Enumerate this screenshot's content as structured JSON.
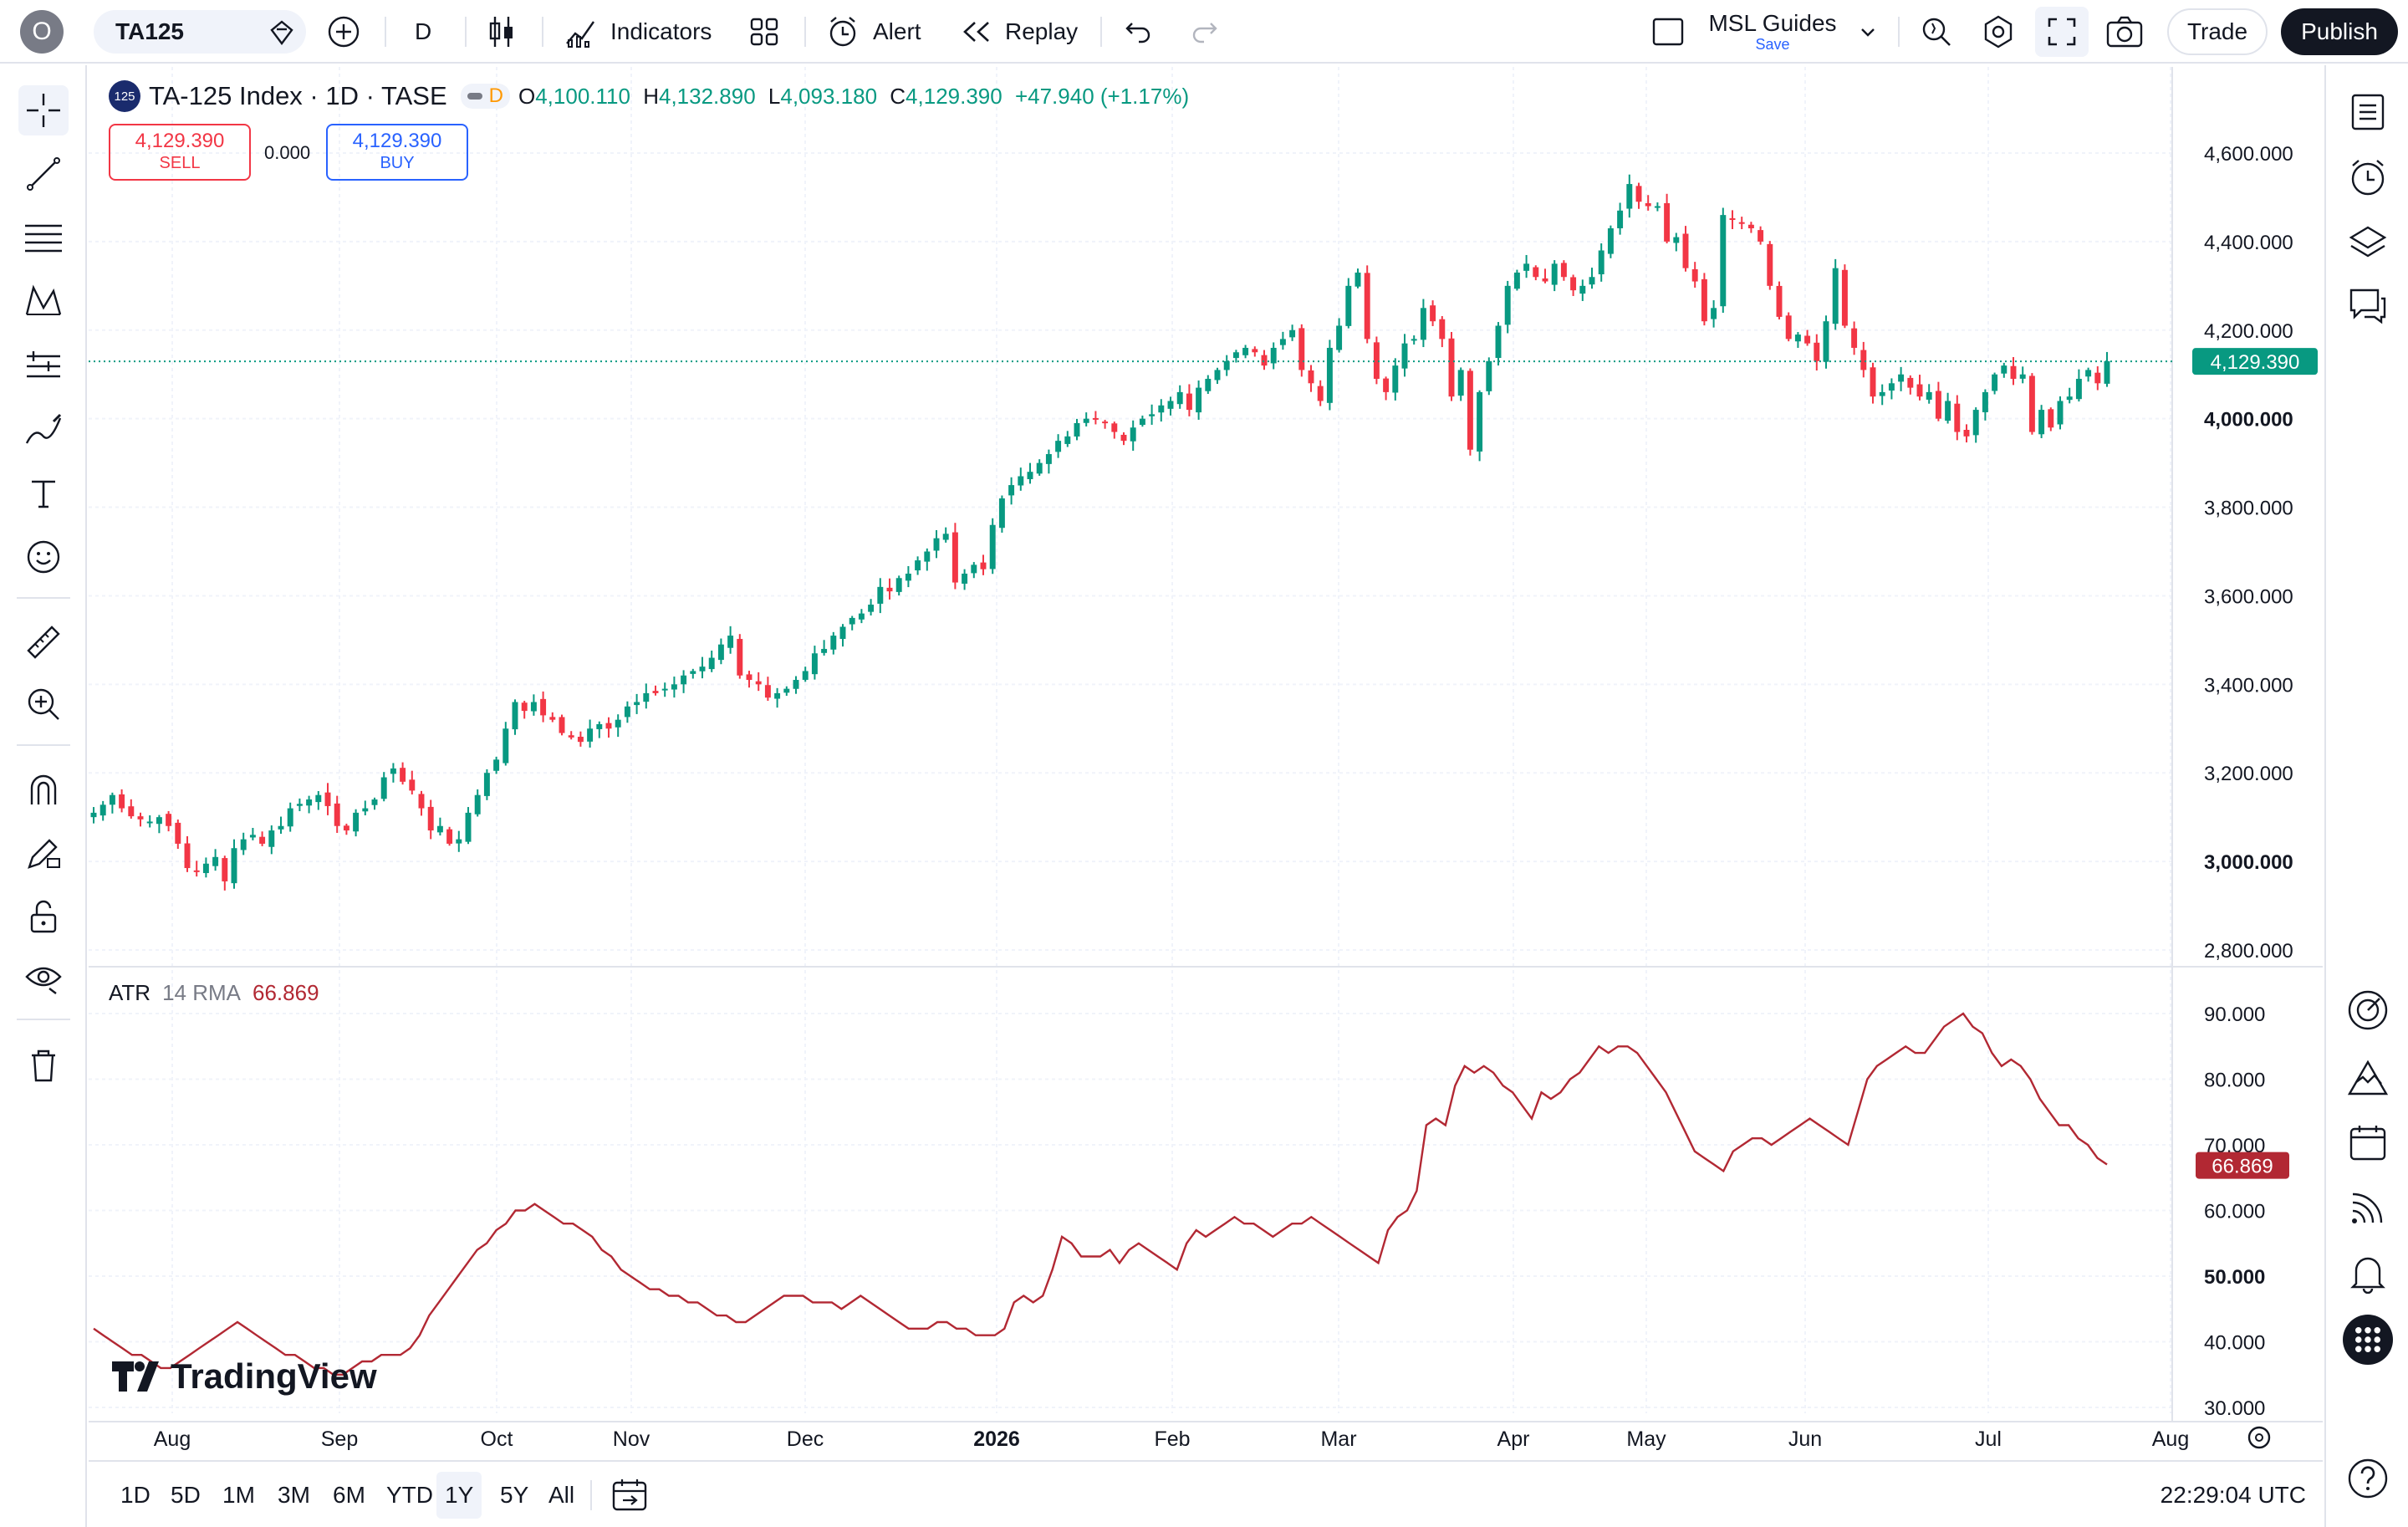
{
  "topbar": {
    "avatar_letter": "O",
    "symbol": "TA125",
    "interval": "D",
    "indicators_label": "Indicators",
    "alert_label": "Alert",
    "replay_label": "Replay",
    "layout_name": "MSL Guides",
    "layout_save": "Save",
    "trade_label": "Trade",
    "publish_label": "Publish"
  },
  "legend": {
    "badge": "125",
    "title": "TA-125 Index · 1D · TASE",
    "d_badge": "D",
    "o_key": "O",
    "o_val": "4,100.110",
    "h_key": "H",
    "h_val": "4,132.890",
    "l_key": "L",
    "l_val": "4,093.180",
    "c_key": "C",
    "c_val": "4,129.390",
    "change": "+47.940 (+1.17%)",
    "sell_price": "4,129.390",
    "sell_label": "SELL",
    "spread": "0.000",
    "buy_price": "4,129.390",
    "buy_label": "BUY"
  },
  "atr": {
    "name": "ATR",
    "params": "14 RMA",
    "value": "66.869"
  },
  "bottombar": {
    "ranges": [
      "1D",
      "5D",
      "1M",
      "3M",
      "6M",
      "YTD",
      "1Y",
      "5Y",
      "All"
    ],
    "selected": "1Y",
    "clock": "22:29:04 UTC"
  },
  "branding": {
    "logo_text": "TradingView"
  },
  "colors": {
    "up": "#089981",
    "down": "#f23645",
    "atr": "#b22833",
    "accent": "#2962ff"
  },
  "chart_data": [
    {
      "type": "candlestick",
      "title": "TA-125 Index · 1D · TASE",
      "x_tick_labels": [
        "Aug",
        "Sep",
        "Oct",
        "Nov",
        "Dec",
        "2026",
        "Feb",
        "Mar",
        "Apr",
        "May",
        "Jun",
        "Jul",
        "Aug"
      ],
      "y_tick_labels": [
        "4,600.000",
        "4,400.000",
        "4,200.000",
        "4,000.000",
        "3,800.000",
        "3,600.000",
        "3,400.000",
        "3,200.000",
        "3,000.000",
        "2,800.000"
      ],
      "y_ticks": [
        4600,
        4400,
        4200,
        4000,
        3800,
        3600,
        3400,
        3200,
        3000,
        2800
      ],
      "ylim": [
        2780,
        4680
      ],
      "last_price": 4129.39,
      "last_price_label": "4,129.390",
      "grid": true,
      "closes": [
        3110,
        3128,
        3150,
        3120,
        3102,
        3095,
        3090,
        3100,
        3080,
        3040,
        2985,
        2978,
        2995,
        3010,
        2955,
        3030,
        3050,
        3060,
        3040,
        3070,
        3080,
        3120,
        3130,
        3140,
        3150,
        3125,
        3080,
        3070,
        3110,
        3120,
        3140,
        3190,
        3210,
        3180,
        3160,
        3120,
        3070,
        3080,
        3040,
        3050,
        3110,
        3150,
        3200,
        3230,
        3300,
        3360,
        3340,
        3360,
        3330,
        3320,
        3290,
        3280,
        3270,
        3300,
        3310,
        3300,
        3320,
        3350,
        3360,
        3380,
        3380,
        3390,
        3400,
        3420,
        3430,
        3440,
        3460,
        3490,
        3510,
        3420,
        3410,
        3400,
        3370,
        3380,
        3390,
        3410,
        3430,
        3470,
        3480,
        3510,
        3530,
        3550,
        3560,
        3580,
        3620,
        3610,
        3640,
        3650,
        3680,
        3700,
        3730,
        3740,
        3630,
        3650,
        3670,
        3660,
        3760,
        3820,
        3850,
        3870,
        3880,
        3900,
        3920,
        3950,
        3960,
        3990,
        4000,
        4000,
        3990,
        3970,
        3950,
        3980,
        4000,
        4010,
        4030,
        4040,
        4060,
        4020,
        4070,
        4090,
        4110,
        4130,
        4150,
        4160,
        4150,
        4120,
        4160,
        4180,
        4200,
        4110,
        4080,
        4040,
        4160,
        4210,
        4300,
        4330,
        4180,
        4090,
        4060,
        4120,
        4170,
        4180,
        4250,
        4220,
        4180,
        4050,
        4110,
        3930,
        4060,
        4130,
        4210,
        4300,
        4330,
        4350,
        4320,
        4310,
        4350,
        4320,
        4290,
        4300,
        4320,
        4380,
        4430,
        4470,
        4530,
        4490,
        4480,
        4480,
        4400,
        4410,
        4340,
        4310,
        4220,
        4250,
        4460,
        4450,
        4440,
        4430,
        4400,
        4300,
        4230,
        4180,
        4190,
        4170,
        4130,
        4220,
        4340,
        4210,
        4160,
        4110,
        4050,
        4060,
        4080,
        4100,
        4070,
        4050,
        4060,
        4000,
        4040,
        3970,
        3960,
        4020,
        4060,
        4100,
        4120,
        4090,
        4100,
        3970,
        4020,
        3980,
        4040,
        4050,
        4090,
        4110,
        4080,
        4130
      ]
    },
    {
      "type": "line",
      "name": "ATR 14 RMA",
      "last_value_label": "66.869",
      "y_tick_labels": [
        "90.000",
        "80.000",
        "70.000",
        "60.000",
        "50.000",
        "40.000",
        "30.000"
      ],
      "y_ticks": [
        90,
        80,
        70,
        60,
        50,
        40,
        30
      ],
      "ylim": [
        29,
        93
      ],
      "values": [
        42,
        41,
        40,
        39,
        38,
        38,
        37,
        36,
        36,
        37,
        38,
        39,
        40,
        41,
        42,
        43,
        42,
        41,
        40,
        39,
        38,
        38,
        37,
        36,
        36,
        35,
        35,
        36,
        37,
        37,
        38,
        38,
        38,
        39,
        41,
        44,
        46,
        48,
        50,
        52,
        54,
        55,
        57,
        58,
        60,
        60,
        61,
        60,
        59,
        58,
        58,
        57,
        56,
        54,
        53,
        51,
        50,
        49,
        48,
        48,
        47,
        47,
        46,
        46,
        45,
        44,
        44,
        43,
        43,
        44,
        45,
        46,
        47,
        47,
        47,
        46,
        46,
        46,
        45,
        46,
        47,
        46,
        45,
        44,
        43,
        42,
        42,
        42,
        43,
        43,
        42,
        42,
        41,
        41,
        41,
        42,
        46,
        47,
        46,
        47,
        51,
        56,
        55,
        53,
        53,
        53,
        54,
        52,
        54,
        55,
        54,
        53,
        52,
        51,
        55,
        57,
        56,
        57,
        58,
        59,
        58,
        58,
        57,
        56,
        57,
        58,
        58,
        59,
        58,
        57,
        56,
        55,
        54,
        53,
        52,
        57,
        59,
        60,
        63,
        73,
        74,
        73,
        79,
        82,
        81,
        82,
        81,
        79,
        78,
        76,
        74,
        78,
        77,
        78,
        80,
        81,
        83,
        85,
        84,
        85,
        85,
        84,
        82,
        80,
        78,
        75,
        72,
        69,
        68,
        67,
        66,
        69,
        70,
        71,
        71,
        70,
        71,
        72,
        73,
        74,
        73,
        72,
        71,
        70,
        75,
        80,
        82,
        83,
        84,
        85,
        84,
        84,
        86,
        88,
        89,
        90,
        88,
        87,
        84,
        82,
        83,
        82,
        80,
        77,
        75,
        73,
        73,
        71,
        70,
        68,
        67
      ]
    }
  ]
}
